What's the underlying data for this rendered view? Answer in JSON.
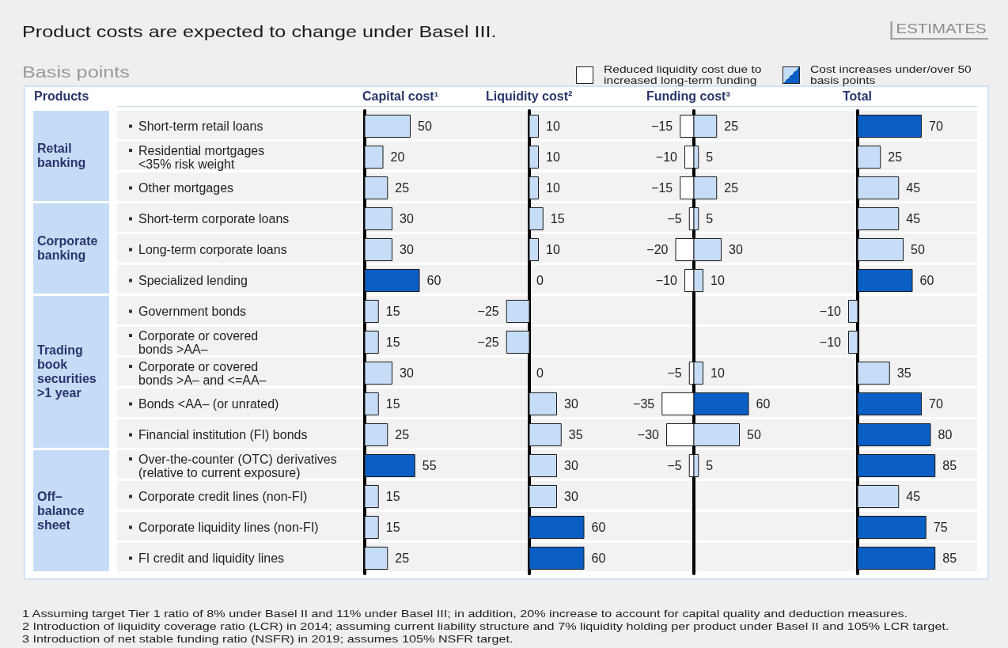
{
  "chart_data": [
    {
      "type": "other",
      "title": "Product costs are expected to change under Basel III.",
      "subtitle": "Basis points",
      "annotations": [
        "ESTIMATES",
        "1 Assuming target Tier 1 ratio of 8% under Basel II and 11% under Basel III; in addition, 20% increase to account for capital quality and deduction measures.",
        "2 Introduction of liquidity coverage ratio (LCR) in 2014; assuming current liability structure and 7% liquidity holding per product under Basel II and 105% LCR target.",
        "3 Introduction of net stable funding ratio (NSFR) in 2019; assumes 105% NSFR target."
      ]
    },
    {
      "type": "bar",
      "orientation": "horizontal",
      "title": "Capital cost¹",
      "ylabel": "Products",
      "categories": [
        "Short-term retail loans",
        "Residential mortgages\n<35% risk weight",
        "Other mortgages",
        "Short-term corporate loans",
        "Long-term corporate loans",
        "Specialized lending",
        "Government bonds",
        "Corporate or covered\nbonds >AA–",
        "Corporate or covered\nbonds >A– and <=AA–",
        "Bonds <AA– (or unrated)",
        "Financial institution (FI) bonds",
        "Over-the-counter (OTC) derivatives\n(relative to current exposure)",
        "Corporate credit lines (non-FI)",
        "Corporate liquidity lines (non-FI)",
        "FI credit and liquidity lines"
      ],
      "values": [
        50,
        20,
        25,
        30,
        30,
        60,
        15,
        15,
        30,
        15,
        25,
        55,
        15,
        15,
        25
      ],
      "colors": [
        "#c7ddf7",
        "#c7ddf7",
        "#c7ddf7",
        "#c7ddf7",
        "#c7ddf7",
        "#0a5ec4",
        "#c7ddf7",
        "#c7ddf7",
        "#c7ddf7",
        "#c7ddf7",
        "#c7ddf7",
        "#0a5ec4",
        "#c7ddf7",
        "#c7ddf7",
        "#c7ddf7"
      ],
      "data_labels": true,
      "tick_labels": "y",
      "annotations": [
        "Retail\nbanking",
        "Corporate\nbanking",
        "Trading\nbook\nsecurities\n>1 year",
        "Off–\nbalance\nsheet"
      ]
    },
    {
      "type": "bar",
      "orientation": "horizontal",
      "title": "Liquidity cost²",
      "categories": [
        null,
        null,
        null,
        null,
        null,
        null,
        null,
        null,
        null,
        null,
        null,
        null,
        null,
        null,
        null
      ],
      "values": [
        10,
        10,
        10,
        15,
        10,
        0,
        -25,
        -25,
        0,
        30,
        35,
        30,
        30,
        60,
        60
      ],
      "colors": [
        "#c7ddf7",
        "#c7ddf7",
        "#c7ddf7",
        "#c7ddf7",
        "#c7ddf7",
        "#c7ddf7",
        "#c7ddf7",
        "#c7ddf7",
        "#c7ddf7",
        "#c7ddf7",
        "#c7ddf7",
        "#c7ddf7",
        "#c7ddf7",
        "#0a5ec4",
        "#0a5ec4"
      ],
      "data_labels": true,
      "tick_labels": false
    },
    {
      "type": "bar",
      "orientation": "horizontal",
      "stacked": true,
      "title": "Funding cost³",
      "categories": [
        null,
        null,
        null,
        null,
        null,
        null,
        null,
        null,
        null,
        null,
        null,
        null,
        null,
        null,
        null
      ],
      "series": [
        {
          "name": "Reduced liquidity cost due to increased long-term funding",
          "color": "#ffffff",
          "values": [
            -15,
            -10,
            -15,
            -5,
            -20,
            -10,
            null,
            null,
            -5,
            -35,
            -30,
            -5,
            null,
            null,
            null
          ]
        },
        {
          "name": "Cost increases under/over 50 basis points",
          "colors": [
            "#c7ddf7",
            "#c7ddf7",
            "#c7ddf7",
            "#c7ddf7",
            "#c7ddf7",
            "#c7ddf7",
            null,
            null,
            "#c7ddf7",
            "#0a5ec4",
            "#c7ddf7",
            "#c7ddf7",
            null,
            null,
            null
          ],
          "values": [
            25,
            5,
            25,
            5,
            30,
            10,
            null,
            null,
            10,
            60,
            50,
            5,
            null,
            null,
            null
          ]
        }
      ],
      "data_labels": true,
      "tick_labels": false,
      "legend": "top right"
    },
    {
      "type": "bar",
      "orientation": "horizontal",
      "title": "Total",
      "categories": [
        null,
        null,
        null,
        null,
        null,
        null,
        null,
        null,
        null,
        null,
        null,
        null,
        null,
        null,
        null
      ],
      "values": [
        70,
        25,
        45,
        45,
        50,
        60,
        -10,
        -10,
        35,
        70,
        80,
        85,
        45,
        75,
        85
      ],
      "colors": [
        "#0a5ec4",
        "#c7ddf7",
        "#c7ddf7",
        "#c7ddf7",
        "#c7ddf7",
        "#0a5ec4",
        "#c7ddf7",
        "#c7ddf7",
        "#c7ddf7",
        "#0a5ec4",
        "#0a5ec4",
        "#0a5ec4",
        "#c7ddf7",
        "#0a5ec4",
        "#0a5ec4"
      ],
      "data_labels": true,
      "tick_labels": false
    }
  ]
}
